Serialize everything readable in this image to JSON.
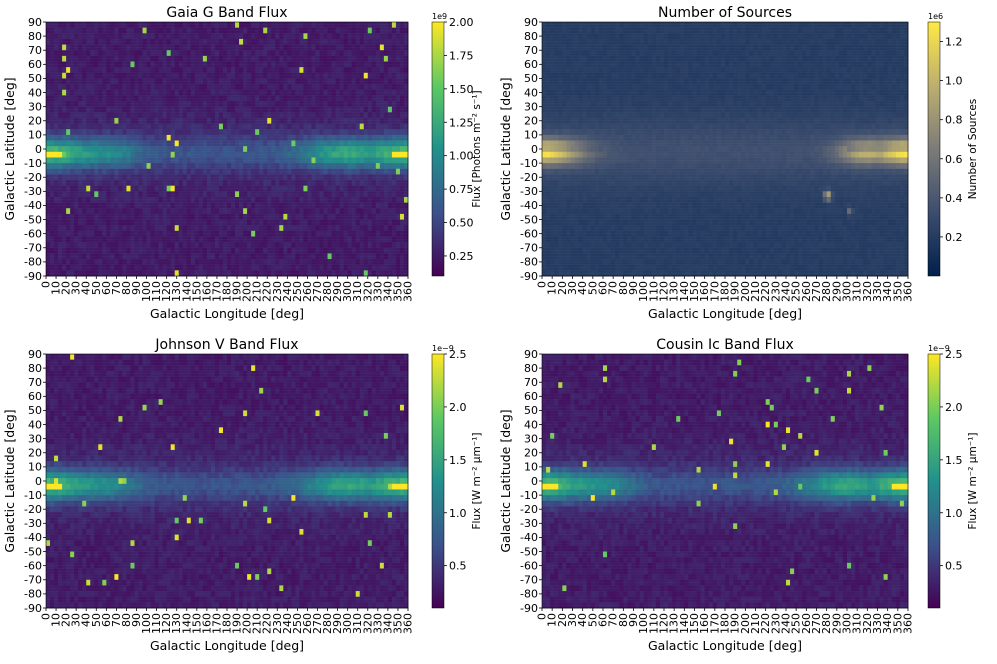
{
  "chart_data": [
    {
      "type": "heatmap",
      "id": "gaia-g",
      "title": "Gaia G Band Flux",
      "xlabel": "Galactic Longitude [deg]",
      "ylabel": "Galactic Latitude [deg]",
      "xticks": [
        "0",
        "10",
        "20",
        "30",
        "40",
        "50",
        "60",
        "70",
        "80",
        "90",
        "100",
        "110",
        "120",
        "130",
        "140",
        "150",
        "160",
        "170",
        "180",
        "190",
        "200",
        "210",
        "220",
        "230",
        "240",
        "250",
        "260",
        "270",
        "280",
        "290",
        "300",
        "310",
        "320",
        "330",
        "340",
        "350",
        "360"
      ],
      "yticks": [
        "90",
        "80",
        "70",
        "60",
        "50",
        "40",
        "30",
        "20",
        "10",
        "0",
        "-10",
        "-20",
        "-30",
        "-40",
        "-50",
        "-60",
        "-70",
        "-80",
        "-90"
      ],
      "colormap": "viridis",
      "colorbar": {
        "label": "Flux [Photons m⁻² s⁻¹]",
        "offset": "1e9",
        "ticks": [
          "0.25",
          "0.50",
          "0.75",
          "1.00",
          "1.25",
          "1.50",
          "1.75",
          "2.00"
        ],
        "tick_values": [
          0.25,
          0.5,
          0.75,
          1.0,
          1.25,
          1.5,
          1.75,
          2.0
        ],
        "range": [
          0.1,
          2.0
        ]
      }
    },
    {
      "type": "heatmap",
      "id": "num-sources",
      "title": "Number of Sources",
      "xlabel": "Galactic Longitude [deg]",
      "ylabel": "Galactic Latitude [deg]",
      "xticks": [
        "0",
        "10",
        "20",
        "30",
        "40",
        "50",
        "60",
        "70",
        "80",
        "90",
        "100",
        "110",
        "120",
        "130",
        "140",
        "150",
        "160",
        "170",
        "180",
        "190",
        "200",
        "210",
        "220",
        "230",
        "240",
        "250",
        "260",
        "270",
        "280",
        "290",
        "300",
        "310",
        "320",
        "330",
        "340",
        "350",
        "360"
      ],
      "yticks": [
        "90",
        "80",
        "70",
        "60",
        "50",
        "40",
        "30",
        "20",
        "10",
        "0",
        "-10",
        "-20",
        "-30",
        "-40",
        "-50",
        "-60",
        "-70",
        "-80",
        "-90"
      ],
      "colormap": "cividis",
      "colorbar": {
        "label": "Number of Sources",
        "offset": "1e6",
        "ticks": [
          "0.2",
          "0.4",
          "0.6",
          "0.8",
          "1.0",
          "1.2"
        ],
        "tick_values": [
          0.2,
          0.4,
          0.6,
          0.8,
          1.0,
          1.2
        ],
        "range": [
          0.0,
          1.3
        ]
      }
    },
    {
      "type": "heatmap",
      "id": "johnson-v",
      "title": "Johnson V Band Flux",
      "xlabel": "Galactic Longitude [deg]",
      "ylabel": "Galactic Latitude [deg]",
      "xticks": [
        "0",
        "10",
        "20",
        "30",
        "40",
        "50",
        "60",
        "70",
        "80",
        "90",
        "100",
        "110",
        "120",
        "130",
        "140",
        "150",
        "160",
        "170",
        "180",
        "190",
        "200",
        "210",
        "220",
        "230",
        "240",
        "250",
        "260",
        "270",
        "280",
        "290",
        "300",
        "310",
        "320",
        "330",
        "340",
        "350",
        "360"
      ],
      "yticks": [
        "90",
        "80",
        "70",
        "60",
        "50",
        "40",
        "30",
        "20",
        "10",
        "0",
        "-10",
        "-20",
        "-30",
        "-40",
        "-50",
        "-60",
        "-70",
        "-80",
        "-90"
      ],
      "colormap": "viridis",
      "colorbar": {
        "label": "Flux [W m⁻² μm⁻¹]",
        "offset": "1e−9",
        "ticks": [
          "0.5",
          "1.0",
          "1.5",
          "2.0",
          "2.5"
        ],
        "tick_values": [
          0.5,
          1.0,
          1.5,
          2.0,
          2.5
        ],
        "range": [
          0.1,
          2.5
        ]
      }
    },
    {
      "type": "heatmap",
      "id": "cousin-ic",
      "title": "Cousin Ic Band Flux",
      "xlabel": "Galactic Longitude [deg]",
      "ylabel": "Galactic Latitude [deg]",
      "xticks": [
        "0",
        "10",
        "20",
        "30",
        "40",
        "50",
        "60",
        "70",
        "80",
        "90",
        "100",
        "110",
        "120",
        "130",
        "140",
        "150",
        "160",
        "170",
        "180",
        "190",
        "200",
        "210",
        "220",
        "230",
        "240",
        "250",
        "260",
        "270",
        "280",
        "290",
        "300",
        "310",
        "320",
        "330",
        "340",
        "350",
        "360"
      ],
      "yticks": [
        "90",
        "80",
        "70",
        "60",
        "50",
        "40",
        "30",
        "20",
        "10",
        "0",
        "-10",
        "-20",
        "-30",
        "-40",
        "-50",
        "-60",
        "-70",
        "-80",
        "-90"
      ],
      "colormap": "viridis",
      "colorbar": {
        "label": "Flux [W m⁻² μm⁻¹]",
        "offset": "1e−9",
        "ticks": [
          "0.5",
          "1.0",
          "1.5",
          "2.0",
          "2.5"
        ],
        "tick_values": [
          0.5,
          1.0,
          1.5,
          2.0,
          2.5
        ],
        "range": [
          0.1,
          2.5
        ]
      }
    }
  ]
}
